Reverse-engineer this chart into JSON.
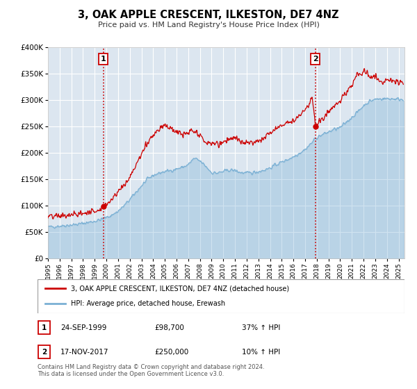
{
  "title": "3, OAK APPLE CRESCENT, ILKESTON, DE7 4NZ",
  "subtitle": "Price paid vs. HM Land Registry's House Price Index (HPI)",
  "background_color": "#ffffff",
  "plot_bg_color": "#dce6f0",
  "grid_color": "#ffffff",
  "red_line_color": "#cc0000",
  "blue_line_color": "#7ab0d4",
  "marker1_date": 1999.73,
  "marker1_value": 98700,
  "marker2_date": 2017.88,
  "marker2_value": 250000,
  "marker1_label": "1",
  "marker2_label": "2",
  "legend_line1": "3, OAK APPLE CRESCENT, ILKESTON, DE7 4NZ (detached house)",
  "legend_line2": "HPI: Average price, detached house, Erewash",
  "table_row1": [
    "1",
    "24-SEP-1999",
    "£98,700",
    "37% ↑ HPI"
  ],
  "table_row2": [
    "2",
    "17-NOV-2017",
    "£250,000",
    "10% ↑ HPI"
  ],
  "footnote1": "Contains HM Land Registry data © Crown copyright and database right 2024.",
  "footnote2": "This data is licensed under the Open Government Licence v3.0.",
  "xmin": 1995.0,
  "xmax": 2025.5,
  "ymin": 0,
  "ymax": 400000,
  "hpi_anchors_x": [
    1995.0,
    1995.5,
    1996.0,
    1996.5,
    1997.0,
    1997.5,
    1998.0,
    1998.5,
    1999.0,
    1999.5,
    2000.0,
    2000.5,
    2001.0,
    2001.5,
    2002.0,
    2002.5,
    2003.0,
    2003.5,
    2004.0,
    2004.5,
    2005.0,
    2005.5,
    2006.0,
    2006.5,
    2007.0,
    2007.5,
    2008.0,
    2008.5,
    2009.0,
    2009.5,
    2010.0,
    2010.5,
    2011.0,
    2011.5,
    2012.0,
    2012.5,
    2013.0,
    2013.5,
    2014.0,
    2014.5,
    2015.0,
    2015.5,
    2016.0,
    2016.5,
    2017.0,
    2017.5,
    2017.88,
    2018.0,
    2018.5,
    2019.0,
    2019.5,
    2020.0,
    2020.5,
    2021.0,
    2021.5,
    2022.0,
    2022.5,
    2023.0,
    2023.5,
    2024.0,
    2024.5,
    2025.0
  ],
  "hpi_anchors_y": [
    60000,
    61000,
    62000,
    63000,
    64000,
    65000,
    67000,
    69000,
    71000,
    74000,
    78000,
    83000,
    90000,
    100000,
    112000,
    125000,
    138000,
    150000,
    158000,
    162000,
    165000,
    167000,
    170000,
    173000,
    178000,
    190000,
    185000,
    175000,
    163000,
    162000,
    165000,
    168000,
    167000,
    163000,
    162000,
    163000,
    165000,
    168000,
    172000,
    178000,
    183000,
    188000,
    193000,
    200000,
    207000,
    218000,
    228000,
    230000,
    235000,
    240000,
    245000,
    248000,
    258000,
    268000,
    278000,
    290000,
    298000,
    302000,
    303000,
    303000,
    303000,
    302000
  ],
  "prop_anchors_x": [
    1995.0,
    1995.3,
    1995.6,
    1996.0,
    1996.3,
    1996.6,
    1997.0,
    1997.3,
    1997.6,
    1998.0,
    1998.3,
    1998.6,
    1999.0,
    1999.3,
    1999.73,
    2000.0,
    2000.3,
    2000.6,
    2001.0,
    2001.3,
    2001.6,
    2002.0,
    2002.3,
    2002.6,
    2003.0,
    2003.3,
    2003.6,
    2004.0,
    2004.3,
    2004.6,
    2005.0,
    2005.3,
    2005.6,
    2006.0,
    2006.3,
    2006.6,
    2007.0,
    2007.3,
    2007.6,
    2008.0,
    2008.3,
    2008.6,
    2009.0,
    2009.3,
    2009.6,
    2010.0,
    2010.3,
    2010.6,
    2011.0,
    2011.3,
    2011.6,
    2012.0,
    2012.3,
    2012.6,
    2013.0,
    2013.3,
    2013.6,
    2014.0,
    2014.3,
    2014.6,
    2015.0,
    2015.3,
    2015.6,
    2016.0,
    2016.3,
    2016.6,
    2017.0,
    2017.3,
    2017.6,
    2017.88,
    2018.0,
    2018.3,
    2018.6,
    2019.0,
    2019.3,
    2019.6,
    2020.0,
    2020.3,
    2020.6,
    2021.0,
    2021.3,
    2021.6,
    2022.0,
    2022.3,
    2022.6,
    2023.0,
    2023.3,
    2023.6,
    2024.0,
    2024.3,
    2024.6,
    2025.0
  ],
  "prop_anchors_y": [
    80000,
    79000,
    80000,
    81000,
    82000,
    81000,
    83000,
    84000,
    85000,
    86000,
    87000,
    89000,
    91000,
    93000,
    98700,
    104000,
    110000,
    118000,
    128000,
    135000,
    142000,
    155000,
    168000,
    182000,
    198000,
    212000,
    225000,
    235000,
    242000,
    248000,
    255000,
    248000,
    244000,
    240000,
    237000,
    234000,
    238000,
    242000,
    238000,
    232000,
    225000,
    218000,
    218000,
    220000,
    215000,
    222000,
    226000,
    228000,
    228000,
    224000,
    220000,
    218000,
    220000,
    222000,
    224000,
    228000,
    232000,
    238000,
    242000,
    248000,
    254000,
    258000,
    260000,
    262000,
    268000,
    275000,
    282000,
    292000,
    308000,
    250000,
    252000,
    260000,
    268000,
    278000,
    285000,
    292000,
    298000,
    308000,
    318000,
    330000,
    342000,
    348000,
    355000,
    350000,
    345000,
    342000,
    338000,
    334000,
    340000,
    338000,
    335000,
    332000
  ]
}
